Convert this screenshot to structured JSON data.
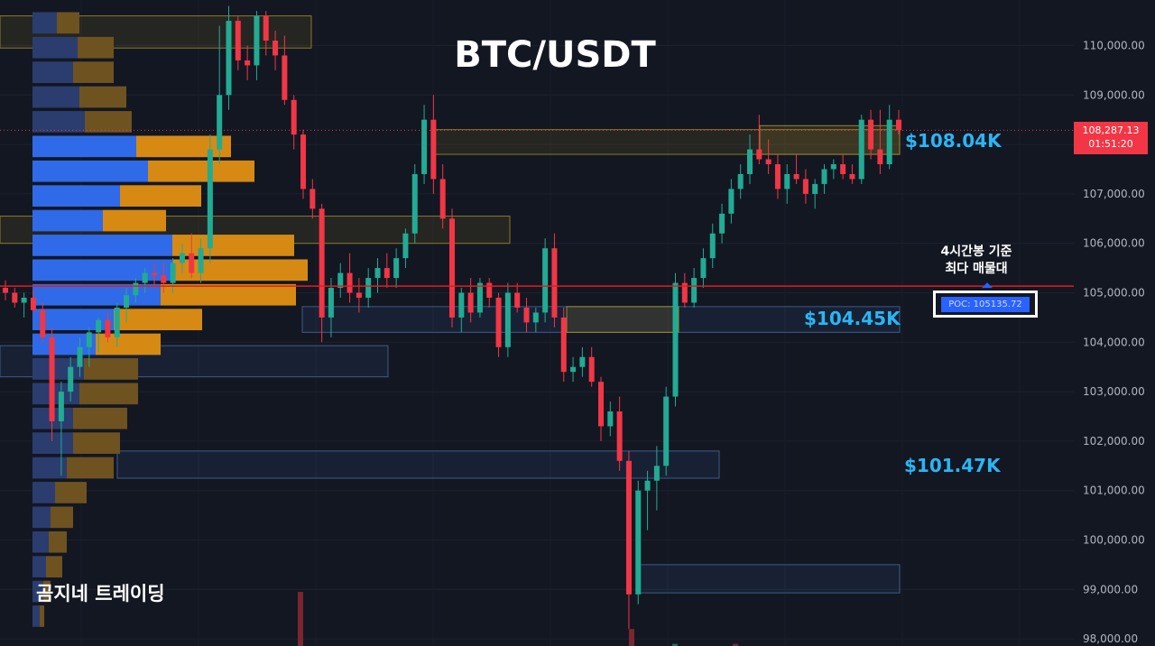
{
  "chart_data": {
    "type": "candlestick",
    "title": "BTC/USDT",
    "watermark": "곰지네 트레이딩",
    "y_axis": {
      "min": 97800,
      "max": 111000,
      "tick_labels": [
        "110,000.00",
        "109,000.00",
        "108,000.00",
        "107,000.00",
        "106,000.00",
        "105,000.00",
        "104,000.00",
        "103,000.00",
        "102,000.00",
        "101,000.00",
        "100,000.00",
        "99,000.00",
        "98,000.00"
      ],
      "tick_values": [
        110000,
        109000,
        108000,
        107000,
        106000,
        105000,
        104000,
        103000,
        102000,
        101000,
        100000,
        99000,
        98000
      ]
    },
    "current_price": {
      "price": "108,287.13",
      "countdown": "01:51:20",
      "value": 108287.13
    },
    "poc": {
      "value": 105135.72,
      "label": "POC: 105135.72",
      "note_line1": "4시간봉 기준",
      "note_line2": "최다 매물대"
    },
    "zone_labels": [
      {
        "text": "$108.04K",
        "value": 108040
      },
      {
        "text": "$104.45K",
        "value": 104450
      },
      {
        "text": "$101.47K",
        "value": 101470
      }
    ],
    "zones": [
      {
        "y1": 110600,
        "y2": 109950,
        "kind": "supply"
      },
      {
        "y1": 108300,
        "y2": 107800,
        "kind": "supply"
      },
      {
        "y1": 106550,
        "y2": 106000,
        "kind": "supply"
      },
      {
        "y1": 104720,
        "y2": 104200,
        "kind": "demand"
      },
      {
        "y1": 103930,
        "y2": 103300,
        "kind": "demand"
      },
      {
        "y1": 101800,
        "y2": 101250,
        "kind": "demand"
      },
      {
        "y1": 99500,
        "y2": 98930,
        "kind": "demand"
      }
    ],
    "volume_profile": [
      {
        "price": 110450,
        "buy": 27,
        "sell": 25
      },
      {
        "price": 109950,
        "buy": 50,
        "sell": 40
      },
      {
        "price": 109450,
        "buy": 45,
        "sell": 45
      },
      {
        "price": 108950,
        "buy": 52,
        "sell": 52
      },
      {
        "price": 108450,
        "buy": 58,
        "sell": 52
      },
      {
        "price": 107950,
        "buy": 115,
        "sell": 105
      },
      {
        "price": 107450,
        "buy": 128,
        "sell": 118
      },
      {
        "price": 106950,
        "buy": 97,
        "sell": 90
      },
      {
        "price": 106450,
        "buy": 78,
        "sell": 70
      },
      {
        "price": 105950,
        "buy": 155,
        "sell": 135
      },
      {
        "price": 105450,
        "buy": 155,
        "sell": 150
      },
      {
        "price": 104950,
        "buy": 142,
        "sell": 150
      },
      {
        "price": 104450,
        "buy": 90,
        "sell": 98
      },
      {
        "price": 103950,
        "buy": 70,
        "sell": 72
      },
      {
        "price": 103450,
        "buy": 57,
        "sell": 60
      },
      {
        "price": 102950,
        "buy": 52,
        "sell": 65
      },
      {
        "price": 102450,
        "buy": 45,
        "sell": 60
      },
      {
        "price": 101950,
        "buy": 45,
        "sell": 52
      },
      {
        "price": 101450,
        "buy": 38,
        "sell": 52
      },
      {
        "price": 100950,
        "buy": 25,
        "sell": 35
      },
      {
        "price": 100450,
        "buy": 20,
        "sell": 25
      },
      {
        "price": 99950,
        "buy": 18,
        "sell": 20
      },
      {
        "price": 99450,
        "buy": 15,
        "sell": 18
      },
      {
        "price": 98950,
        "buy": 12,
        "sell": 8
      },
      {
        "price": 98450,
        "buy": 8,
        "sell": 5
      }
    ],
    "candles": [
      [
        105100,
        105250,
        104850,
        105000
      ],
      [
        105000,
        105100,
        104700,
        104800
      ],
      [
        104800,
        105000,
        104500,
        104900
      ],
      [
        104900,
        105050,
        104600,
        104650
      ],
      [
        104650,
        104800,
        104000,
        104100
      ],
      [
        104100,
        104300,
        102000,
        102400
      ],
      [
        102400,
        103200,
        101300,
        103000
      ],
      [
        103000,
        103700,
        102800,
        103500
      ],
      [
        103500,
        104100,
        103300,
        103900
      ],
      [
        103900,
        104300,
        103500,
        104200
      ],
      [
        104200,
        104500,
        103800,
        104450
      ],
      [
        104450,
        104600,
        104000,
        104100
      ],
      [
        104100,
        104800,
        103900,
        104700
      ],
      [
        104700,
        105100,
        104400,
        104950
      ],
      [
        104950,
        105300,
        104800,
        105200
      ],
      [
        105200,
        105500,
        105000,
        105400
      ],
      [
        105400,
        105600,
        105100,
        105350
      ],
      [
        105350,
        105600,
        105000,
        105200
      ],
      [
        105200,
        105700,
        105000,
        105600
      ],
      [
        105600,
        106000,
        105400,
        105800
      ],
      [
        105800,
        106200,
        105300,
        105400
      ],
      [
        105400,
        106100,
        105200,
        105900
      ],
      [
        105900,
        108200,
        105600,
        107900
      ],
      [
        107900,
        110400,
        107600,
        109000
      ],
      [
        109000,
        110800,
        108700,
        110500
      ],
      [
        110500,
        110600,
        109500,
        109700
      ],
      [
        109700,
        110000,
        109300,
        109600
      ],
      [
        109600,
        110700,
        109300,
        110600
      ],
      [
        110600,
        110700,
        109800,
        110100
      ],
      [
        110100,
        110300,
        109500,
        109800
      ],
      [
        109800,
        110200,
        108800,
        108900
      ],
      [
        108900,
        109000,
        107900,
        108200
      ],
      [
        108200,
        108300,
        106900,
        107100
      ],
      [
        107100,
        107300,
        106500,
        106700
      ],
      [
        106700,
        106800,
        104000,
        104500
      ],
      [
        104500,
        105300,
        104100,
        105100
      ],
      [
        105100,
        105600,
        104900,
        105400
      ],
      [
        105400,
        105800,
        104800,
        105000
      ],
      [
        105000,
        105300,
        104600,
        104900
      ],
      [
        104900,
        105500,
        104700,
        105300
      ],
      [
        105300,
        105700,
        105000,
        105500
      ],
      [
        105500,
        105800,
        105100,
        105300
      ],
      [
        105300,
        105900,
        105100,
        105700
      ],
      [
        105700,
        106300,
        105500,
        106200
      ],
      [
        106200,
        107600,
        106000,
        107400
      ],
      [
        107400,
        108800,
        107200,
        108500
      ],
      [
        108500,
        109000,
        107000,
        107300
      ],
      [
        107300,
        107600,
        106300,
        106500
      ],
      [
        106500,
        106700,
        104300,
        104500
      ],
      [
        104500,
        105100,
        104200,
        105000
      ],
      [
        105000,
        105300,
        104400,
        104600
      ],
      [
        104600,
        105300,
        104500,
        105200
      ],
      [
        105200,
        105300,
        104700,
        104900
      ],
      [
        104900,
        105000,
        103700,
        103900
      ],
      [
        103900,
        105200,
        103700,
        105000
      ],
      [
        105000,
        105200,
        104600,
        104700
      ],
      [
        104700,
        104900,
        104200,
        104400
      ],
      [
        104400,
        104700,
        104200,
        104600
      ],
      [
        104600,
        106100,
        104400,
        105900
      ],
      [
        105900,
        106200,
        104300,
        104500
      ],
      [
        104500,
        104700,
        103200,
        103400
      ],
      [
        103400,
        103700,
        103200,
        103500
      ],
      [
        103500,
        103900,
        103300,
        103700
      ],
      [
        103700,
        103900,
        103100,
        103200
      ],
      [
        103200,
        103300,
        102000,
        102300
      ],
      [
        102300,
        102800,
        102100,
        102600
      ],
      [
        102600,
        102900,
        101400,
        101600
      ],
      [
        101600,
        101800,
        98200,
        98900
      ],
      [
        98900,
        101200,
        98700,
        101000
      ],
      [
        101000,
        101400,
        100200,
        101200
      ],
      [
        101200,
        101900,
        100600,
        101500
      ],
      [
        101500,
        103100,
        101300,
        102900
      ],
      [
        102900,
        105400,
        102700,
        105200
      ],
      [
        105200,
        105400,
        104700,
        104800
      ],
      [
        104800,
        105500,
        104700,
        105300
      ],
      [
        105300,
        105900,
        105100,
        105700
      ],
      [
        105700,
        106400,
        105500,
        106200
      ],
      [
        106200,
        106800,
        106000,
        106600
      ],
      [
        106600,
        107300,
        106400,
        107100
      ],
      [
        107100,
        107600,
        106900,
        107400
      ],
      [
        107400,
        108200,
        107200,
        107900
      ],
      [
        107900,
        108600,
        107600,
        107700
      ],
      [
        107700,
        108100,
        107400,
        107600
      ],
      [
        107600,
        107800,
        106900,
        107100
      ],
      [
        107100,
        107600,
        106800,
        107400
      ],
      [
        107400,
        107800,
        107200,
        107300
      ],
      [
        107300,
        107500,
        106800,
        107000
      ],
      [
        107000,
        107300,
        106700,
        107200
      ],
      [
        107200,
        107600,
        107000,
        107500
      ],
      [
        107500,
        107700,
        107300,
        107600
      ],
      [
        107600,
        107800,
        107300,
        107400
      ],
      [
        107400,
        107600,
        107200,
        107300
      ],
      [
        107300,
        108600,
        107200,
        108500
      ],
      [
        108500,
        108700,
        107700,
        107900
      ],
      [
        107900,
        108700,
        107400,
        107600
      ],
      [
        107600,
        108800,
        107500,
        108500
      ],
      [
        108500,
        108700,
        108200,
        108287
      ]
    ]
  }
}
